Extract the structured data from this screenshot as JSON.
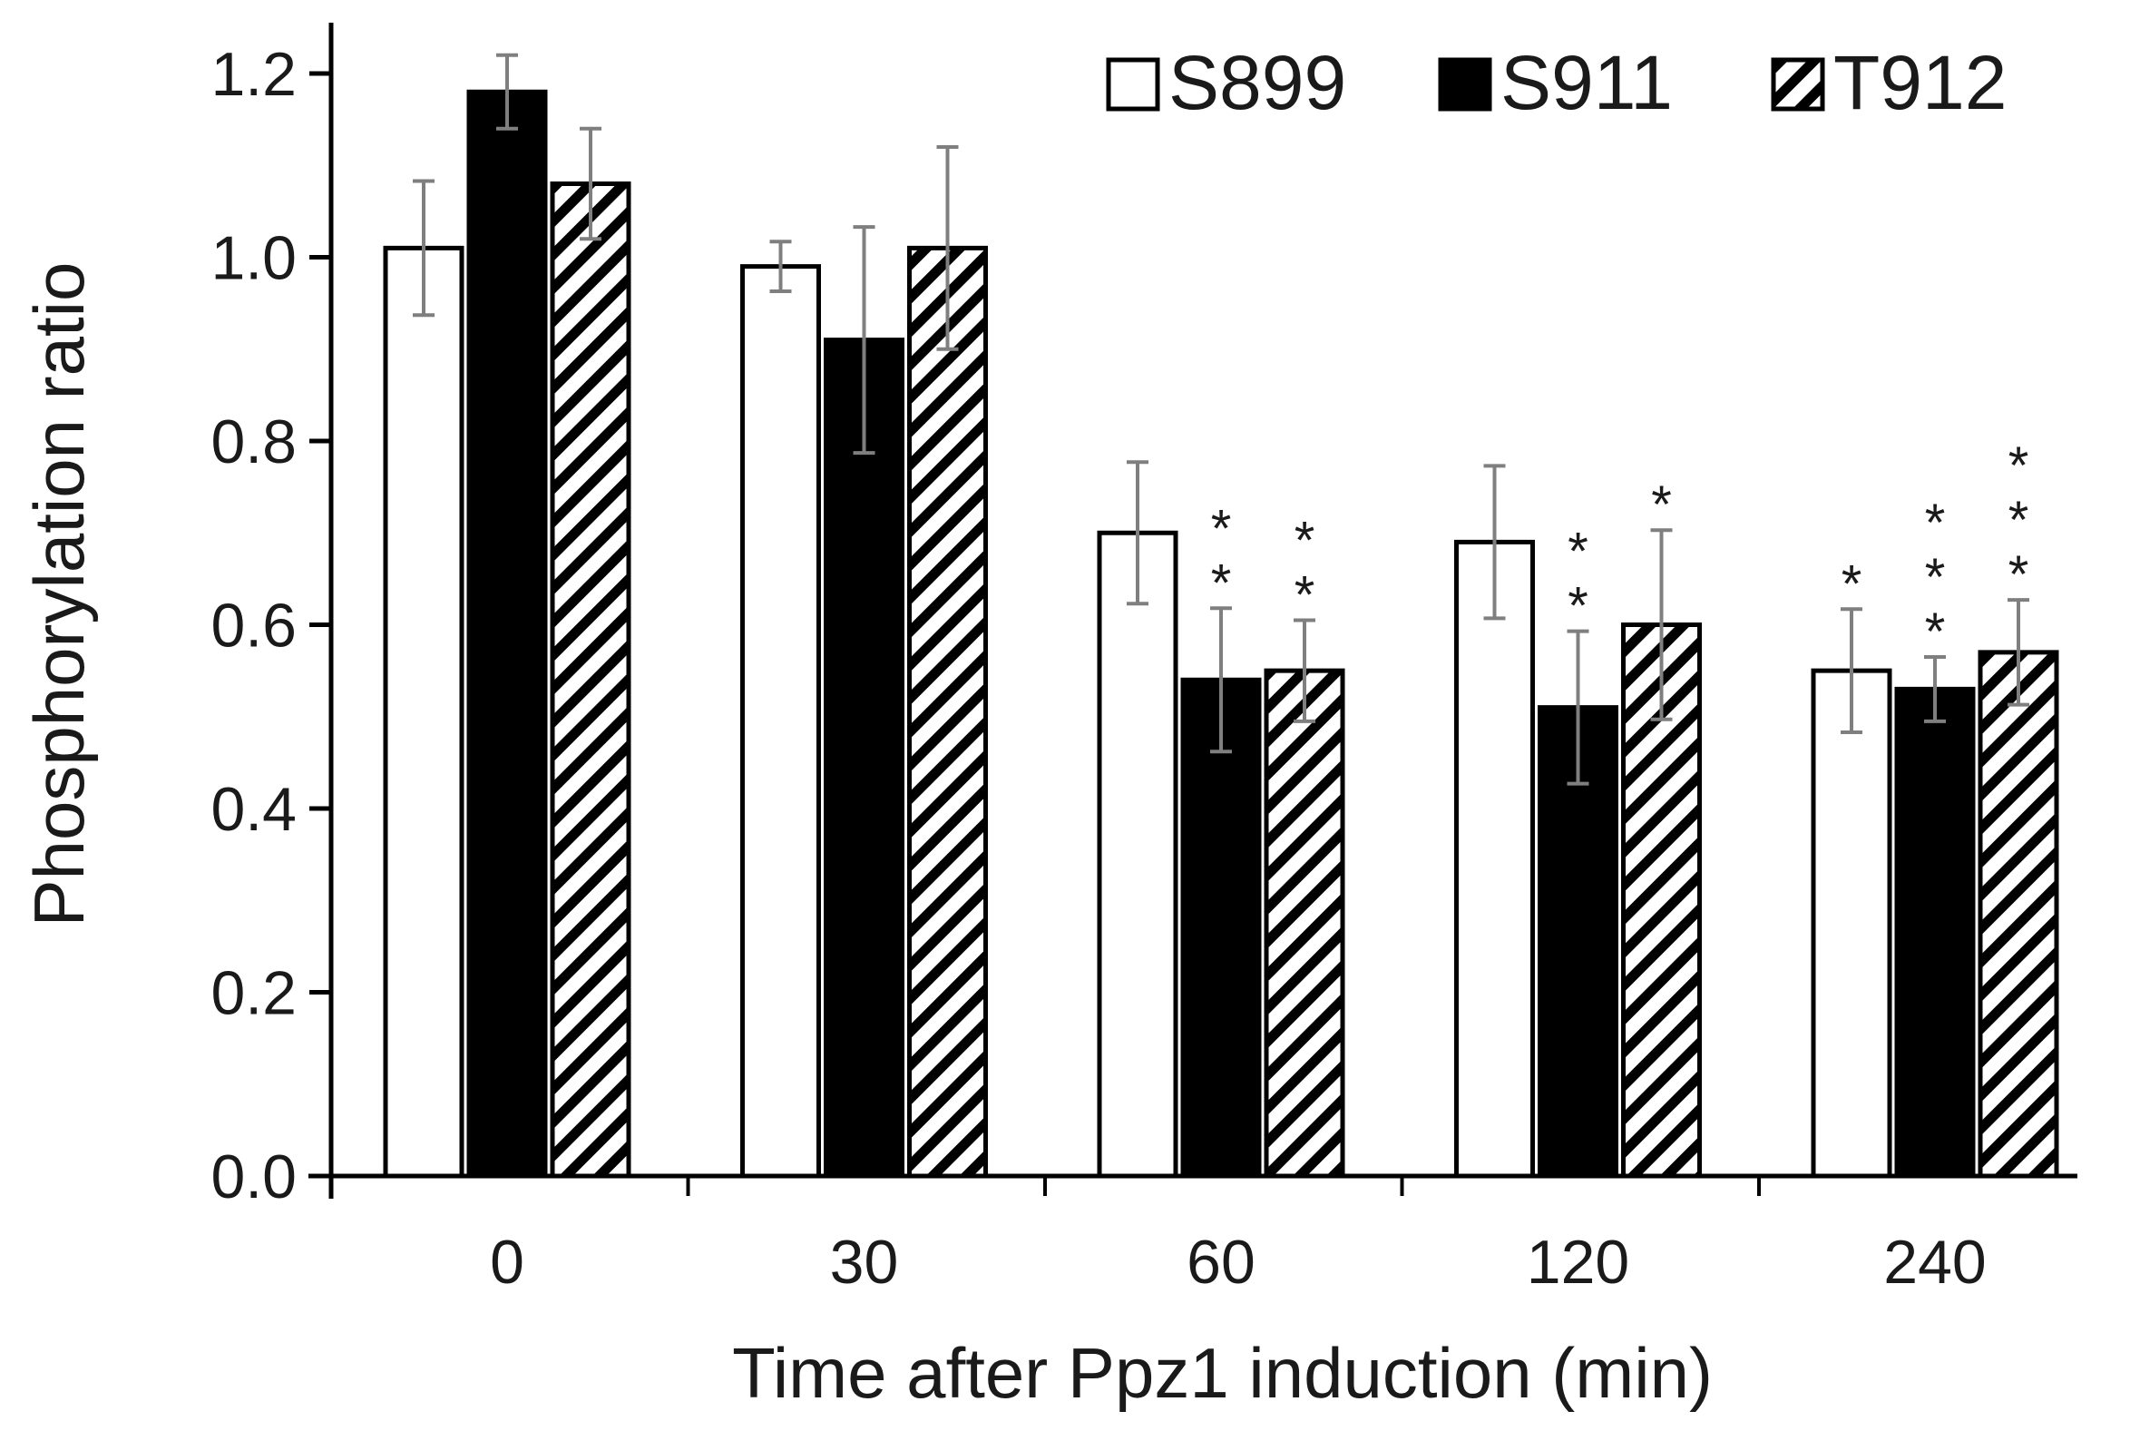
{
  "chart_data": {
    "type": "bar",
    "title": "",
    "xlabel": "Time after Ppz1 induction (min)",
    "ylabel": "Phosphorylation ratio",
    "categories": [
      "0",
      "30",
      "60",
      "120",
      "240"
    ],
    "ylim": [
      0,
      1.2
    ],
    "yticks": [
      0.0,
      0.2,
      0.4,
      0.6,
      0.8,
      1.0,
      1.2
    ],
    "ytick_labels": [
      "0.0",
      "0.2",
      "0.4",
      "0.6",
      "0.8",
      "1.0",
      "1.2"
    ],
    "grid": false,
    "legend_position": "top-right",
    "series": [
      {
        "name": "S899",
        "fill": "white",
        "values": [
          1.01,
          0.99,
          0.7,
          0.69,
          0.55
        ],
        "errors": [
          0.073,
          0.027,
          0.077,
          0.083,
          0.067
        ],
        "significance": [
          "",
          "",
          "",
          "",
          "*"
        ]
      },
      {
        "name": "S911",
        "fill": "black",
        "values": [
          1.18,
          0.91,
          0.54,
          0.51,
          0.53
        ],
        "errors": [
          0.04,
          0.123,
          0.078,
          0.083,
          0.035
        ],
        "significance": [
          "",
          "",
          "**",
          "**",
          "***"
        ]
      },
      {
        "name": "T912",
        "fill": "hatched",
        "values": [
          1.08,
          1.01,
          0.55,
          0.6,
          0.57
        ],
        "errors": [
          0.06,
          0.11,
          0.055,
          0.103,
          0.057
        ],
        "significance": [
          "",
          "",
          "**",
          "*",
          "***"
        ]
      }
    ],
    "colors": {
      "bar_edge": "#000000",
      "solid_fill": "#000000",
      "open_fill": "#ffffff",
      "error_bar": "#7f7f7f",
      "text": "#1a1a1a"
    }
  }
}
